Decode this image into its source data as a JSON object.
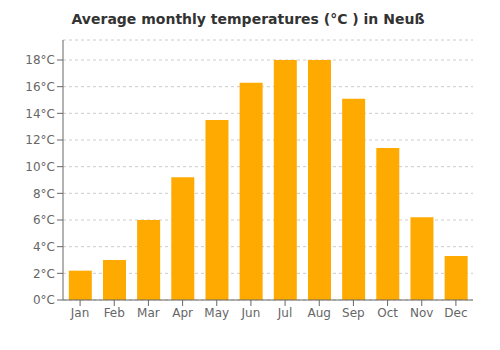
{
  "chart_data": {
    "type": "bar",
    "title": "Average monthly temperatures (°C ) in Neuß",
    "categories": [
      "Jan",
      "Feb",
      "Mar",
      "Apr",
      "May",
      "Jun",
      "Jul",
      "Aug",
      "Sep",
      "Oct",
      "Nov",
      "Dec"
    ],
    "values": [
      2.2,
      3.0,
      6.0,
      9.2,
      13.5,
      16.3,
      18.0,
      18.0,
      15.1,
      11.4,
      6.2,
      3.3
    ],
    "color": "#FFAA00",
    "ylim": [
      0,
      19.5
    ],
    "yticks": [
      {
        "value": 0,
        "label": "0°C"
      },
      {
        "value": 2,
        "label": "2°C"
      },
      {
        "value": 4,
        "label": "4°C"
      },
      {
        "value": 6,
        "label": "6°C"
      },
      {
        "value": 8,
        "label": "8°C"
      },
      {
        "value": 10,
        "label": "10°C"
      },
      {
        "value": 12,
        "label": "12°C"
      },
      {
        "value": 14,
        "label": "14°C"
      },
      {
        "value": 16,
        "label": "16°C"
      },
      {
        "value": 18,
        "label": "18°C"
      }
    ],
    "grid": true
  }
}
